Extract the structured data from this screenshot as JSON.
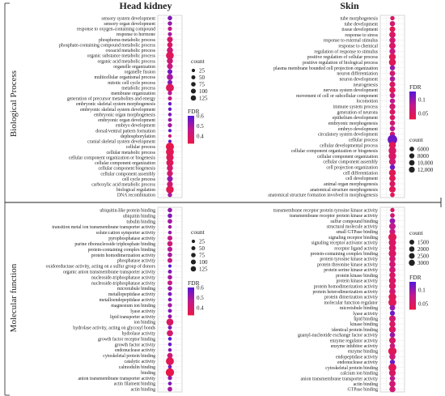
{
  "section_labels": {
    "columns": [
      "Head kidney",
      "Skin"
    ],
    "rows": [
      "Biological Process",
      "Molecular function"
    ]
  },
  "colors": {
    "low": "#e8174a",
    "mid": "#c01a8c",
    "high": "#5a17d4"
  },
  "chart_data": [
    {
      "type": "scatter",
      "column": "Head kidney",
      "row": "Biological Process",
      "categories": [
        "sensory system development",
        "sensory organ development",
        "response to oxygen-containing compound",
        "response to hormone",
        "phosphorus metabolic process",
        "phosphate-containing compound metabolic process",
        "oxoacid metabolic process",
        "organic substance metabolic process",
        "organic acid metabolic process",
        "organelle organization",
        "organelle fission",
        "multicellular organismal process",
        "mitotic cell cycle process",
        "metabolic process",
        "membrane organization",
        "generation of precursor metabolites and energy",
        "embryonic skeletal system morphogenesis",
        "embryonic skeletal system development",
        "embryonic organ morphogenesis",
        "embryonic organ development",
        "embryo development",
        "dorsal/ventral pattern formation",
        "dephosphorylation",
        "cranial skeletal system development",
        "cellular process",
        "cellular metabolic process",
        "cellular component organization or biogenesis",
        "cellular component organization",
        "cellular component biogenesis",
        "cellular component assembly",
        "cell cycle process",
        "carboxylic acid metabolic process",
        "biological regulation",
        "DNA recombination"
      ],
      "counts": [
        22,
        20,
        18,
        16,
        48,
        40,
        60,
        112,
        58,
        48,
        30,
        58,
        28,
        120,
        18,
        16,
        8,
        8,
        10,
        12,
        18,
        6,
        8,
        6,
        128,
        118,
        98,
        92,
        58,
        52,
        48,
        52,
        108,
        20
      ],
      "fdr": [
        0.55,
        0.52,
        0.45,
        0.5,
        0.4,
        0.38,
        0.42,
        0.36,
        0.42,
        0.44,
        0.56,
        0.5,
        0.55,
        0.36,
        0.48,
        0.45,
        0.58,
        0.58,
        0.55,
        0.52,
        0.5,
        0.6,
        0.42,
        0.58,
        0.33,
        0.35,
        0.36,
        0.36,
        0.4,
        0.4,
        0.52,
        0.42,
        0.35,
        0.5
      ],
      "size_legend": {
        "title": "count",
        "values": [
          25,
          50,
          75,
          100,
          125
        ]
      },
      "color_legend": {
        "title": "FDR",
        "ticks": [
          0.6,
          0.5,
          0.4
        ],
        "range": [
          0.33,
          0.6
        ]
      }
    },
    {
      "type": "scatter",
      "column": "Skin",
      "row": "Biological Process",
      "categories": [
        "tube morphogenesis",
        "tube development",
        "tissue development",
        "response to stress",
        "response to external stimulus",
        "response to chemical",
        "regulation of response to stimulus",
        "positive regulation of cellular process",
        "positive regulation of biological process",
        "plasma membrane bounded cell projection organization",
        "neuron differentiation",
        "neuron development",
        "neurogenesis",
        "nervous system development",
        "movement of cell or subcellular component",
        "locomotion",
        "immune system process",
        "generation of neurons",
        "epithelium development",
        "embryonic morphogenesis",
        "embryo development",
        "circulatory system development",
        "cellular process",
        "cellular developmental process",
        "cellular component organization or biogenesis",
        "cellular component organization",
        "cellular component assembly",
        "cell projection organization",
        "cell differentiation",
        "cell development",
        "animal organ morphogenesis",
        "anatomical structure morphogenesis",
        "anatomical structure formation involved in morphogenesis"
      ],
      "counts": [
        1500,
        2600,
        3200,
        4200,
        3800,
        4600,
        3500,
        5200,
        5600,
        2500,
        3000,
        2600,
        3400,
        4000,
        2800,
        2500,
        3600,
        3200,
        2800,
        2600,
        2600,
        2400,
        12500,
        5600,
        7200,
        7000,
        5200,
        2600,
        5400,
        4400,
        3400,
        4600,
        1800
      ],
      "fdr": [
        0.05,
        0.06,
        0.04,
        0.05,
        0.06,
        0.05,
        0.07,
        0.04,
        0.04,
        0.1,
        0.06,
        0.09,
        0.05,
        0.04,
        0.07,
        0.08,
        0.06,
        0.05,
        0.05,
        0.06,
        0.08,
        0.06,
        0.12,
        0.04,
        0.05,
        0.05,
        0.06,
        0.12,
        0.04,
        0.04,
        0.05,
        0.04,
        0.04
      ],
      "size_legend": {
        "title": "count",
        "values": [
          6000,
          8000,
          10000,
          12000
        ],
        "labels": [
          "6000",
          "8000",
          "10,000",
          "12,000"
        ]
      },
      "color_legend": {
        "title": "FDR",
        "ticks": [
          0.1,
          0.05
        ],
        "range": [
          0.03,
          0.13
        ]
      }
    },
    {
      "type": "scatter",
      "column": "Head kidney",
      "row": "Molecular function",
      "categories": [
        "ubiquitin-like protein binding",
        "ubiquitin binding",
        "tubulin binding",
        "transition metal ion transmembrane transporter activity",
        "solute:cation symporter activity",
        "pyrophosphatase activity",
        "purine ribonucleoside triphosphate binding",
        "protein-containing complex binding",
        "protein homodimerization activity",
        "phosphatase activity",
        "oxidoreductase activity, acting on a sulfur group of donors",
        "organic anion transmembrane transporter activity",
        "nucleoside-triphosphatase activity",
        "nucleoside-triphosphatase activity",
        "microtubule binding",
        "metallopeptidase activity",
        "metalloendopeptidase activity",
        "magnesium ion binding",
        "lyase activity",
        "lipid transporter activity",
        "ion binding",
        "hydrolase activity, acting on glycosyl bonds",
        "hydrolase activity",
        "growth factor receptor binding",
        "growth factor activity",
        "endonuclease activity",
        "cytoskeletal protein binding",
        "catalytic activity",
        "calmodulin binding",
        "binding",
        "anion transmembrane transporter activity",
        "actin filament binding",
        "actin binding"
      ],
      "counts": [
        22,
        22,
        24,
        10,
        10,
        30,
        38,
        30,
        22,
        28,
        6,
        14,
        22,
        28,
        22,
        14,
        12,
        18,
        14,
        14,
        85,
        14,
        60,
        10,
        10,
        10,
        40,
        120,
        12,
        135,
        18,
        12,
        24
      ],
      "fdr": [
        0.52,
        0.55,
        0.5,
        0.5,
        0.52,
        0.45,
        0.42,
        0.48,
        0.5,
        0.45,
        0.6,
        0.55,
        0.5,
        0.45,
        0.52,
        0.55,
        0.55,
        0.5,
        0.55,
        0.52,
        0.38,
        0.55,
        0.4,
        0.6,
        0.58,
        0.55,
        0.42,
        0.35,
        0.55,
        0.33,
        0.52,
        0.55,
        0.5
      ],
      "size_legend": {
        "title": "count",
        "values": [
          25,
          50,
          75,
          100,
          125
        ]
      },
      "color_legend": {
        "title": "FDR",
        "ticks": [
          0.6,
          0.5,
          0.4
        ],
        "range": [
          0.33,
          0.6
        ]
      }
    },
    {
      "type": "scatter",
      "column": "Skin",
      "row": "Molecular function",
      "categories": [
        "transmembrane receptor protein tyrosine kinase activity",
        "transmembrane receptor protein kinase activity",
        "sulfur compound binding",
        "structural molecule activity",
        "small GTPase binding",
        "signaling receptor binding",
        "signaling receptor activator activity",
        "receptor ligand activity",
        "protein-containing complex binding",
        "protein tyrosine kinase activity",
        "protein threonine kinase activity",
        "protein serine kinase activity",
        "protein kinase binding",
        "protein kinase activity",
        "protein homodimerization activity",
        "protein heterodimerization activity",
        "protein dimerization activity",
        "molecular function regulator",
        "microtubule binding",
        "lyase activity",
        "lipid binding",
        "kinase binding",
        "identical protein binding",
        "guanyl-nucleotide exchange factor activity",
        "enzyme regulator activity",
        "enzyme inhibitor activity",
        "enzyme binding",
        "endopeptidase activity",
        "endonuclease activity",
        "cytoskeletal protein binding",
        "calcium ion binding",
        "anion transmembrane transporter activity",
        "actin binding",
        "GTPase binding"
      ],
      "counts": [
        300,
        400,
        700,
        1100,
        800,
        2000,
        1500,
        1400,
        1600,
        1000,
        1000,
        1000,
        900,
        1300,
        1200,
        1000,
        1700,
        1900,
        700,
        500,
        1100,
        900,
        1200,
        600,
        1100,
        600,
        2100,
        900,
        500,
        1800,
        1200,
        600,
        1000,
        900
      ],
      "fdr": [
        0.05,
        0.06,
        0.1,
        0.08,
        0.07,
        0.04,
        0.05,
        0.05,
        0.05,
        0.06,
        0.06,
        0.06,
        0.05,
        0.05,
        0.05,
        0.06,
        0.04,
        0.04,
        0.1,
        0.12,
        0.06,
        0.05,
        0.05,
        0.1,
        0.05,
        0.07,
        0.04,
        0.06,
        0.12,
        0.04,
        0.05,
        0.08,
        0.06,
        0.06
      ],
      "size_legend": {
        "title": "count",
        "values": [
          1500,
          2000,
          2500,
          3000
        ]
      },
      "color_legend": {
        "title": "FDR",
        "ticks": [
          0.1,
          0.05
        ],
        "range": [
          0.03,
          0.13
        ]
      }
    }
  ]
}
